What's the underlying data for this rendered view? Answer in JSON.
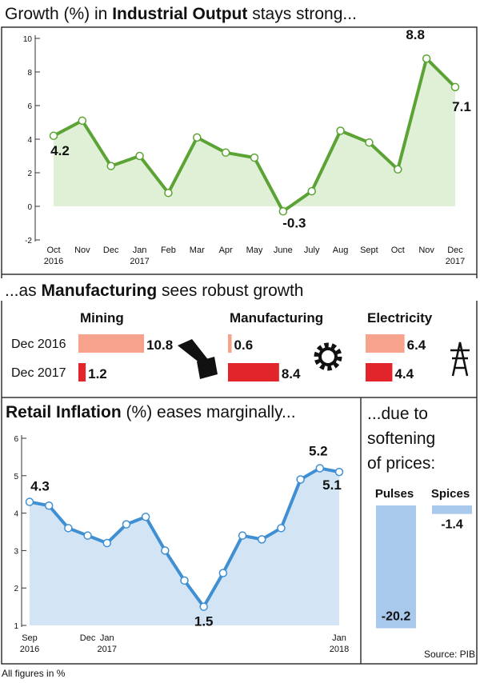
{
  "chart_data": [
    {
      "type": "line",
      "title": [
        "Growth (%) in",
        "Industrial Output",
        "stays strong..."
      ],
      "categories": [
        "Oct\n2016",
        "Nov",
        "Dec",
        "Jan\n2017",
        "Feb",
        "Mar",
        "Apr",
        "May",
        "June",
        "July",
        "Aug",
        "Sept",
        "Oct",
        "Nov",
        "Dec\n2017"
      ],
      "values": [
        4.2,
        5.1,
        2.4,
        3.0,
        0.8,
        4.1,
        3.2,
        2.9,
        -0.3,
        0.9,
        4.5,
        3.8,
        2.2,
        8.8,
        7.1
      ],
      "value_labels": [
        "4.2",
        null,
        null,
        null,
        null,
        null,
        null,
        null,
        "-0.3",
        null,
        null,
        null,
        null,
        "8.8",
        "7.1"
      ],
      "ylim": [
        -2,
        10
      ],
      "yticks": [
        -2,
        0,
        2,
        4,
        6,
        8,
        10
      ],
      "color": "#5ba334",
      "area_color": "#dff0d6"
    },
    {
      "type": "hbar-panels",
      "title": [
        "...as",
        "Manufacturing",
        "sees robust growth"
      ],
      "categories": [
        "Dec 2016",
        "Dec 2017"
      ],
      "colors": [
        "#f6a28d",
        "#e2252b"
      ],
      "panels": [
        {
          "name": "Mining",
          "values": [
            10.8,
            1.2
          ]
        },
        {
          "name": "Manufacturing",
          "values": [
            0.6,
            8.4
          ]
        },
        {
          "name": "Electricity",
          "values": [
            6.4,
            4.4
          ]
        }
      ]
    },
    {
      "type": "line",
      "title": [
        "Retail Inflation",
        "(%) eases marginally..."
      ],
      "categories": [
        "Sep\n2016",
        null,
        null,
        "Dec",
        "Jan\n2017",
        null,
        null,
        null,
        null,
        null,
        null,
        null,
        null,
        null,
        null,
        null,
        "Jan\n2018"
      ],
      "values": [
        4.3,
        4.2,
        3.6,
        3.4,
        3.2,
        3.7,
        3.9,
        3.0,
        2.2,
        1.5,
        2.4,
        3.4,
        3.3,
        3.6,
        4.9,
        5.2,
        5.1
      ],
      "value_labels": [
        "4.3",
        null,
        null,
        null,
        null,
        null,
        null,
        null,
        null,
        "1.5",
        null,
        null,
        null,
        null,
        null,
        "5.2",
        "5.1"
      ],
      "ylim": [
        1,
        6
      ],
      "yticks": [
        1,
        2,
        3,
        4,
        5,
        6
      ],
      "color": "#3f8fd2",
      "area_color": "#d3e5f5"
    },
    {
      "type": "bar",
      "title": "...due to\nsoftening\nof prices:",
      "categories": [
        "Pulses",
        "Spices"
      ],
      "values": [
        -20.2,
        -1.4
      ],
      "color": "#a8c8ec"
    }
  ],
  "footer": {
    "source": "Source: PIB",
    "note": "All figures in %"
  }
}
